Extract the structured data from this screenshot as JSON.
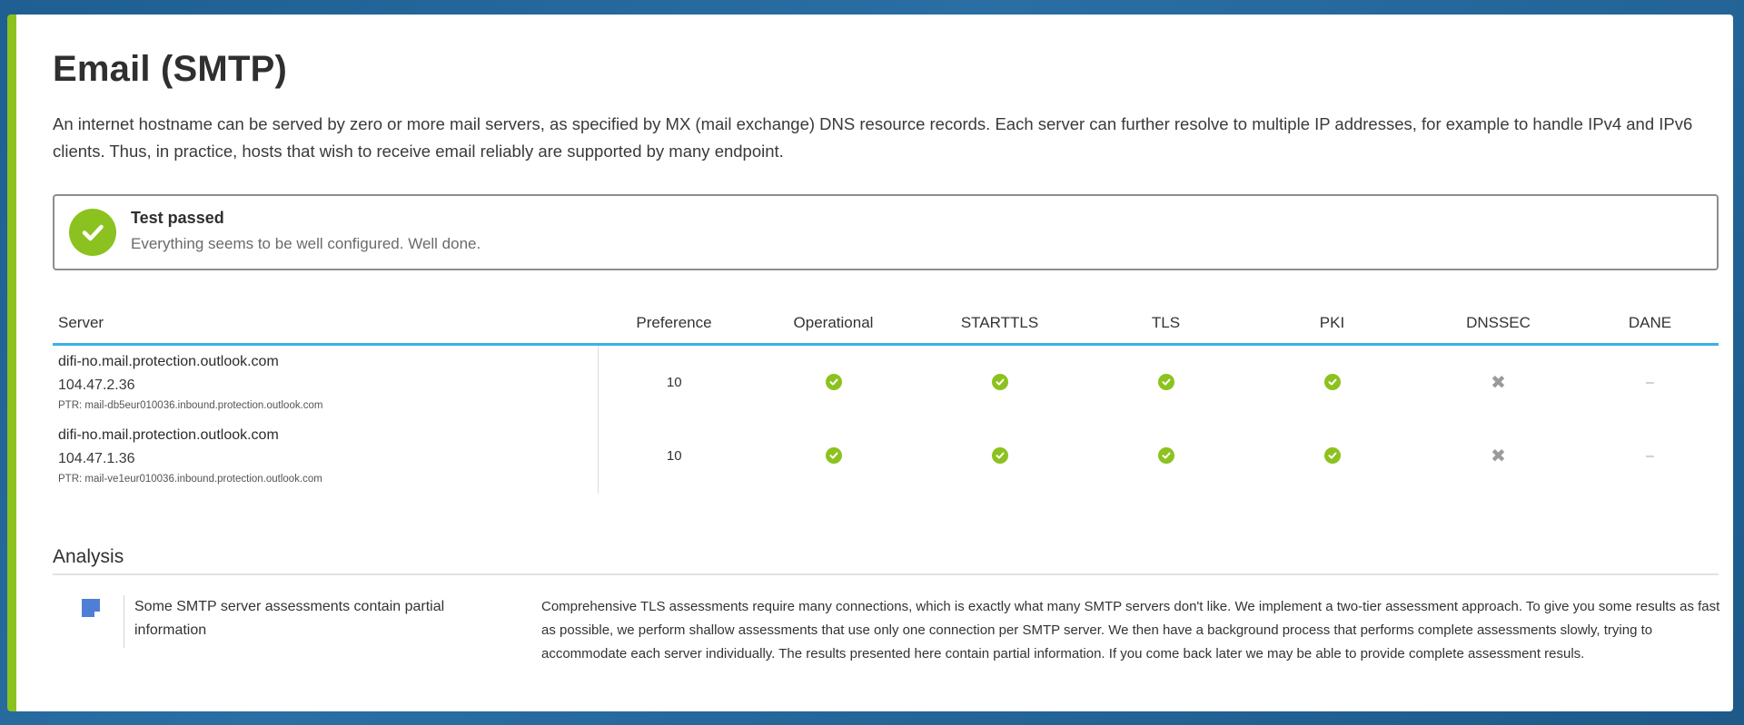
{
  "page": {
    "title": "Email (SMTP)",
    "intro": "An internet hostname can be served by zero or more mail servers, as specified by MX (mail exchange) DNS resource records. Each server can further resolve to multiple IP addresses, for example to handle IPv4 and IPv6 clients. Thus, in practice, hosts that wish to receive email reliably are supported by many endpoint."
  },
  "result": {
    "title": "Test passed",
    "subtitle": "Everything seems to be well configured. Well done.",
    "status_color": "#8cc21f"
  },
  "table": {
    "headers": [
      "Server",
      "Preference",
      "Operational",
      "STARTTLS",
      "TLS",
      "PKI",
      "DNSSEC",
      "DANE"
    ],
    "rows": [
      {
        "host": "difi-no.mail.protection.outlook.com",
        "ip": "104.47.2.36",
        "ptr": "PTR: mail-db5eur010036.inbound.protection.outlook.com",
        "preference": "10",
        "operational": "check-icon",
        "starttls": "check-icon",
        "tls": "check-icon",
        "pki": "check-icon",
        "dnssec": "cross-icon",
        "dane": "–"
      },
      {
        "host": "difi-no.mail.protection.outlook.com",
        "ip": "104.47.1.36",
        "ptr": "PTR: mail-ve1eur010036.inbound.protection.outlook.com",
        "preference": "10",
        "operational": "check-icon",
        "starttls": "check-icon",
        "tls": "check-icon",
        "pki": "check-icon",
        "dnssec": "cross-icon",
        "dane": "–"
      }
    ]
  },
  "analysis": {
    "title": "Analysis",
    "items": [
      {
        "icon": "note-icon",
        "title": "Some SMTP server assessments contain partial information",
        "body": "Comprehensive TLS assessments require many connections, which is exactly what many SMTP servers don't like. We implement a two-tier assessment approach. To give you some results as fast as possible, we perform shallow assessments that use only one connection per SMTP server. We then have a background process that performs complete assessments slowly, trying to accommodate each server individually. The results presented here contain partial information. If you come back later we may be able to provide complete assessment resuls."
      }
    ]
  },
  "colors": {
    "accent_green": "#8cc21f",
    "header_rule": "#3ab1e8",
    "background": "#1f5f91"
  }
}
